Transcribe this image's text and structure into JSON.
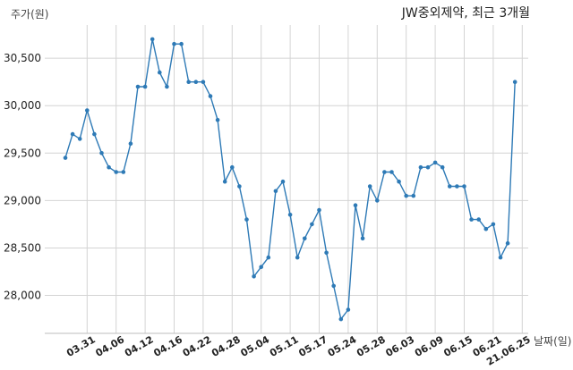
{
  "chart_data": {
    "type": "line",
    "title": "JW중외제약, 최근 3개월",
    "ylabel": "주가(원)",
    "xlabel": "날짜(일)",
    "ylim": [
      27600,
      30850
    ],
    "yticks": [
      28000,
      28500,
      29000,
      29500,
      30000,
      30500
    ],
    "ytick_labels": [
      "28,000",
      "28,500",
      "29,000",
      "29,500",
      "30,000",
      "30,500"
    ],
    "grid": true,
    "colors": {
      "line": "#2e7ab6",
      "point": "#2e7ab6"
    },
    "xtick_labels": [
      "03.31",
      "04.06",
      "04.12",
      "04.16",
      "04.22",
      "04.28",
      "05.04",
      "05.11",
      "05.17",
      "05.24",
      "05.28",
      "06.03",
      "06.09",
      "06.15",
      "06.21",
      "21.06.25"
    ],
    "xtick_index": [
      3,
      7,
      11,
      15,
      19,
      23,
      27,
      31,
      35,
      39,
      43,
      47,
      51,
      55,
      59,
      63
    ],
    "series": [
      {
        "values": [
          29450,
          29700,
          29650,
          29950,
          29700,
          29500,
          29350,
          29300,
          29300,
          29600,
          30200,
          30200,
          30700,
          30350,
          30200,
          30650,
          30650,
          30250,
          30250,
          30250,
          30100,
          29850,
          29200,
          29350,
          29150,
          28800,
          28200,
          28300,
          28400,
          29100,
          29200,
          28850,
          28400,
          28600,
          28750,
          28900,
          28450,
          28100,
          27750,
          27850,
          28950,
          28600,
          29150,
          29000,
          29300,
          29300,
          29200,
          29050,
          29050,
          29350,
          29350,
          29400,
          29350,
          29150,
          29150,
          29150,
          28800,
          28800,
          28700,
          28750,
          28400,
          28550,
          30250
        ]
      }
    ]
  }
}
